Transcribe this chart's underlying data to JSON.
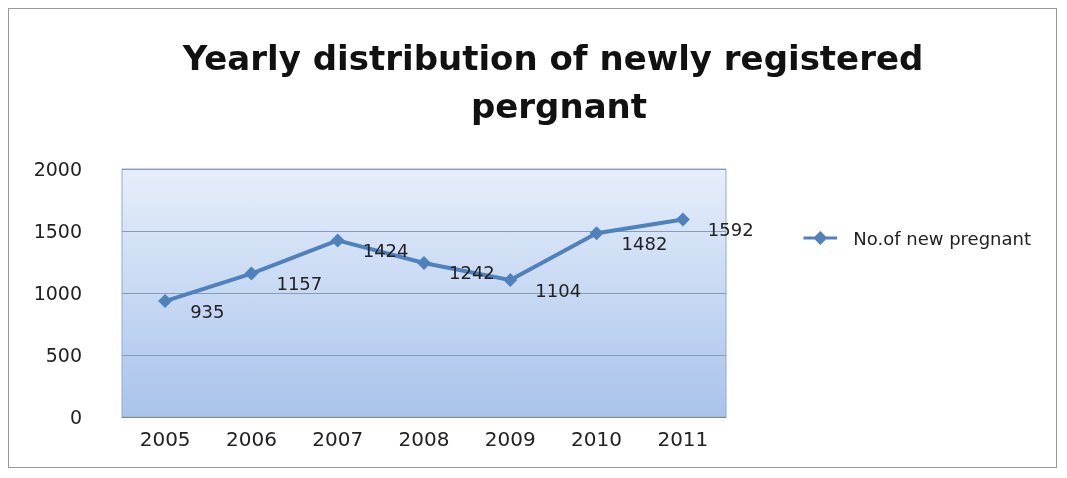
{
  "chart_data": {
    "type": "line",
    "title": "Yearly distribution of newly registered pergnant",
    "categories": [
      "2005",
      "2006",
      "2007",
      "2008",
      "2009",
      "2010",
      "2011"
    ],
    "series": [
      {
        "name": "No.of new pregnant",
        "color": "#4f81bd",
        "values": [
          935,
          1157,
          1424,
          1242,
          1104,
          1482,
          1592
        ]
      }
    ],
    "ylim": [
      0,
      2000
    ],
    "yticks": [
      0,
      500,
      1000,
      1500,
      2000
    ],
    "grid": "y",
    "legend": "right",
    "marker": "diamond",
    "data_labels": true
  }
}
